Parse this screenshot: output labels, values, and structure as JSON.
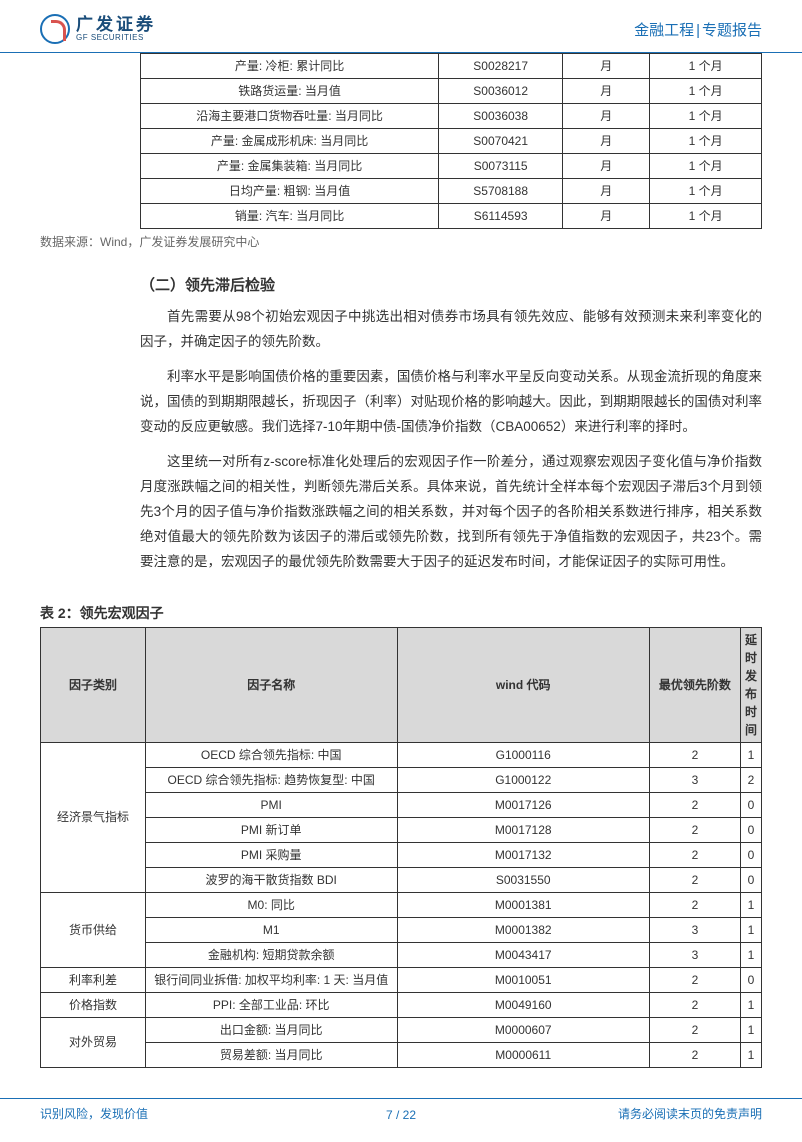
{
  "header": {
    "logo_cn": "广发证券",
    "logo_en": "GF SECURITIES",
    "category": "金融工程",
    "doctype": "专题报告"
  },
  "table1": {
    "rows": [
      [
        "产量: 冷柜: 累计同比",
        "S0028217",
        "月",
        "1 个月"
      ],
      [
        "铁路货运量: 当月值",
        "S0036012",
        "月",
        "1 个月"
      ],
      [
        "沿海主要港口货物吞吐量: 当月同比",
        "S0036038",
        "月",
        "1 个月"
      ],
      [
        "产量: 金属成形机床: 当月同比",
        "S0070421",
        "月",
        "1 个月"
      ],
      [
        "产量: 金属集装箱: 当月同比",
        "S0073115",
        "月",
        "1 个月"
      ],
      [
        "日均产量: 粗钢: 当月值",
        "S5708188",
        "月",
        "1 个月"
      ],
      [
        "销量: 汽车: 当月同比",
        "S6114593",
        "月",
        "1 个月"
      ]
    ]
  },
  "source": "数据来源：Wind，广发证券发展研究中心",
  "section": {
    "title": "（二）领先滞后检验",
    "p1": "首先需要从98个初始宏观因子中挑选出相对债券市场具有领先效应、能够有效预测未来利率变化的因子，并确定因子的领先阶数。",
    "p2": "利率水平是影响国债价格的重要因素，国债价格与利率水平呈反向变动关系。从现金流折现的角度来说，国债的到期期限越长，折现因子（利率）对贴现价格的影响越大。因此，到期期限越长的国债对利率变动的反应更敏感。我们选择7-10年期中债-国债净价指数（CBA00652）来进行利率的择时。",
    "p3": "这里统一对所有z-score标准化处理后的宏观因子作一阶差分，通过观察宏观因子变化值与净价指数月度涨跌幅之间的相关性，判断领先滞后关系。具体来说，首先统计全样本每个宏观因子滞后3个月到领先3个月的因子值与净价指数涨跌幅之间的相关系数，并对每个因子的各阶相关系数进行排序，相关系数绝对值最大的领先阶数为该因子的滞后或领先阶数，找到所有领先于净值指数的宏观因子，共23个。需要注意的是，宏观因子的最优领先阶数需要大于因子的延迟发布时间，才能保证因子的实际可用性。"
  },
  "table2": {
    "title": "表 2：领先宏观因子",
    "headers": [
      "因子类别",
      "因子名称",
      "wind 代码",
      "最优领先阶数",
      "延时发布时间"
    ],
    "groups": [
      {
        "category": "经济景气指标",
        "rows": [
          [
            "OECD 综合领先指标: 中国",
            "G1000116",
            "2",
            "1"
          ],
          [
            "OECD 综合领先指标: 趋势恢复型: 中国",
            "G1000122",
            "3",
            "2"
          ],
          [
            "PMI",
            "M0017126",
            "2",
            "0"
          ],
          [
            "PMI 新订单",
            "M0017128",
            "2",
            "0"
          ],
          [
            "PMI 采购量",
            "M0017132",
            "2",
            "0"
          ],
          [
            "波罗的海干散货指数 BDI",
            "S0031550",
            "2",
            "0"
          ]
        ]
      },
      {
        "category": "货币供给",
        "rows": [
          [
            "M0: 同比",
            "M0001381",
            "2",
            "1"
          ],
          [
            "M1",
            "M0001382",
            "3",
            "1"
          ],
          [
            "金融机构: 短期贷款余额",
            "M0043417",
            "3",
            "1"
          ]
        ]
      },
      {
        "category": "利率利差",
        "rows": [
          [
            "银行间同业拆借: 加权平均利率: 1 天: 当月值",
            "M0010051",
            "2",
            "0"
          ]
        ]
      },
      {
        "category": "价格指数",
        "rows": [
          [
            "PPI: 全部工业品: 环比",
            "M0049160",
            "2",
            "1"
          ]
        ]
      },
      {
        "category": "对外贸易",
        "rows": [
          [
            "出口金额: 当月同比",
            "M0000607",
            "2",
            "1"
          ],
          [
            "贸易差额: 当月同比",
            "M0000611",
            "2",
            "1"
          ]
        ]
      }
    ]
  },
  "footer": {
    "left": "识别风险，发现价值",
    "right": "请务必阅读末页的免责声明",
    "page": "7",
    "total": "22"
  },
  "colors": {
    "brand_blue": "#1a6fb5",
    "header_gray": "#d9d9d9",
    "text": "#333333"
  }
}
